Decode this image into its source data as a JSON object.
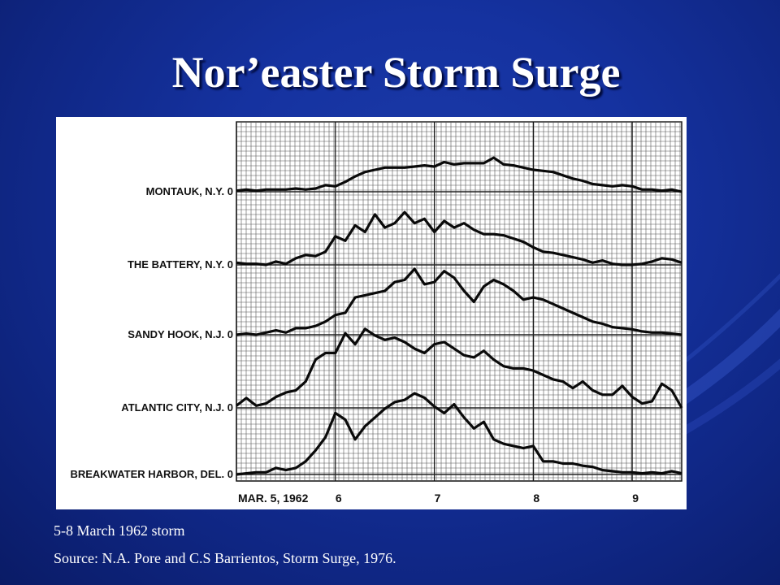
{
  "slide": {
    "title": "Nor’easter Storm Surge",
    "caption": "5-8 March 1962 storm",
    "source": "Source: N.A. Pore and C.S Barrientos, Storm Surge, 1976."
  },
  "chart_data": {
    "type": "line",
    "title": "",
    "x_tick_labels": [
      "MAR. 5, 1962",
      "6",
      "7",
      "8",
      "9"
    ],
    "x_days": [
      5,
      6,
      7,
      8,
      9
    ],
    "x_range": [
      5,
      9.5
    ],
    "y_zero_label": "0",
    "grid": true,
    "stations": [
      {
        "name": "MONTAUK, N.Y.",
        "x": [
          5.0,
          5.1,
          5.2,
          5.3,
          5.4,
          5.5,
          5.6,
          5.7,
          5.8,
          5.9,
          6.0,
          6.1,
          6.2,
          6.3,
          6.4,
          6.5,
          6.6,
          6.7,
          6.8,
          6.9,
          7.0,
          7.1,
          7.2,
          7.3,
          7.4,
          7.5,
          7.6,
          7.7,
          7.8,
          7.9,
          8.0,
          8.1,
          8.2,
          8.3,
          8.4,
          8.5,
          8.6,
          8.7,
          8.8,
          8.9,
          9.0,
          9.1,
          9.2,
          9.3,
          9.4,
          9.5
        ],
        "y": [
          0.05,
          0.1,
          0.05,
          0.1,
          0.1,
          0.1,
          0.15,
          0.1,
          0.15,
          0.3,
          0.25,
          0.45,
          0.7,
          0.9,
          1.0,
          1.1,
          1.1,
          1.1,
          1.15,
          1.2,
          1.15,
          1.35,
          1.25,
          1.3,
          1.3,
          1.3,
          1.55,
          1.25,
          1.2,
          1.1,
          1.0,
          0.95,
          0.9,
          0.75,
          0.6,
          0.5,
          0.35,
          0.3,
          0.25,
          0.3,
          0.25,
          0.1,
          0.1,
          0.05,
          0.1,
          0.0
        ]
      },
      {
        "name": "THE BATTERY, N.Y.",
        "x": [
          5.0,
          5.1,
          5.2,
          5.3,
          5.4,
          5.5,
          5.6,
          5.7,
          5.8,
          5.9,
          6.0,
          6.1,
          6.2,
          6.3,
          6.4,
          6.5,
          6.6,
          6.7,
          6.8,
          6.9,
          7.0,
          7.1,
          7.2,
          7.3,
          7.4,
          7.5,
          7.6,
          7.7,
          7.8,
          7.9,
          8.0,
          8.1,
          8.2,
          8.3,
          8.4,
          8.5,
          8.6,
          8.7,
          8.8,
          8.9,
          9.0,
          9.1,
          9.2,
          9.3,
          9.4,
          9.5
        ],
        "y": [
          0.1,
          0.05,
          0.05,
          0.0,
          0.15,
          0.05,
          0.3,
          0.45,
          0.4,
          0.6,
          1.3,
          1.1,
          1.8,
          1.5,
          2.3,
          1.7,
          1.9,
          2.4,
          1.9,
          2.1,
          1.5,
          2.0,
          1.7,
          1.9,
          1.6,
          1.4,
          1.4,
          1.35,
          1.2,
          1.05,
          0.8,
          0.6,
          0.55,
          0.45,
          0.35,
          0.25,
          0.1,
          0.2,
          0.05,
          0.0,
          0.0,
          0.05,
          0.15,
          0.3,
          0.25,
          0.1
        ]
      },
      {
        "name": "SANDY HOOK, N.J.",
        "x": [
          5.0,
          5.1,
          5.2,
          5.3,
          5.4,
          5.5,
          5.6,
          5.7,
          5.8,
          5.9,
          6.0,
          6.1,
          6.2,
          6.3,
          6.4,
          6.5,
          6.6,
          6.7,
          6.8,
          6.9,
          7.0,
          7.1,
          7.2,
          7.3,
          7.4,
          7.5,
          7.6,
          7.7,
          7.8,
          7.9,
          8.0,
          8.1,
          8.2,
          8.3,
          8.4,
          8.5,
          8.6,
          8.7,
          8.8,
          8.9,
          9.0,
          9.1,
          9.2,
          9.3,
          9.4,
          9.5
        ],
        "y": [
          0.0,
          0.05,
          0.0,
          0.1,
          0.2,
          0.1,
          0.3,
          0.3,
          0.4,
          0.6,
          0.9,
          1.0,
          1.7,
          1.8,
          1.9,
          2.0,
          2.4,
          2.5,
          3.0,
          2.3,
          2.4,
          2.9,
          2.6,
          2.0,
          1.5,
          2.2,
          2.5,
          2.3,
          2.0,
          1.6,
          1.7,
          1.6,
          1.4,
          1.2,
          1.0,
          0.8,
          0.6,
          0.5,
          0.35,
          0.3,
          0.25,
          0.15,
          0.1,
          0.1,
          0.05,
          0.0
        ]
      },
      {
        "name": "ATLANTIC CITY, N.J.",
        "x": [
          5.0,
          5.1,
          5.2,
          5.3,
          5.4,
          5.5,
          5.6,
          5.7,
          5.8,
          5.9,
          6.0,
          6.1,
          6.2,
          6.3,
          6.4,
          6.5,
          6.6,
          6.7,
          6.8,
          6.9,
          7.0,
          7.1,
          7.2,
          7.3,
          7.4,
          7.5,
          7.6,
          7.7,
          7.8,
          7.9,
          8.0,
          8.1,
          8.2,
          8.3,
          8.4,
          8.5,
          8.6,
          8.7,
          8.8,
          8.9,
          9.0,
          9.1,
          9.2,
          9.3,
          9.4,
          9.5
        ],
        "y": [
          0.1,
          0.45,
          0.1,
          0.2,
          0.5,
          0.7,
          0.8,
          1.2,
          2.2,
          2.5,
          2.5,
          3.4,
          2.9,
          3.6,
          3.3,
          3.1,
          3.2,
          3.0,
          2.7,
          2.5,
          2.9,
          3.0,
          2.7,
          2.4,
          2.3,
          2.6,
          2.2,
          1.9,
          1.8,
          1.8,
          1.7,
          1.5,
          1.3,
          1.2,
          0.9,
          1.2,
          0.8,
          0.6,
          0.6,
          1.0,
          0.5,
          0.2,
          0.3,
          1.1,
          0.8,
          0.0
        ]
      },
      {
        "name": "BREAKWATER HARBOR, DEL.",
        "x": [
          5.0,
          5.1,
          5.2,
          5.3,
          5.4,
          5.5,
          5.6,
          5.7,
          5.8,
          5.9,
          6.0,
          6.1,
          6.2,
          6.3,
          6.4,
          6.5,
          6.6,
          6.7,
          6.8,
          6.9,
          7.0,
          7.1,
          7.2,
          7.3,
          7.4,
          7.5,
          7.6,
          7.7,
          7.8,
          7.9,
          8.0,
          8.1,
          8.2,
          8.3,
          8.4,
          8.5,
          8.6,
          8.7,
          8.8,
          8.9,
          9.0,
          9.1,
          9.2,
          9.3,
          9.4,
          9.5
        ],
        "y": [
          0.0,
          0.05,
          0.1,
          0.1,
          0.3,
          0.2,
          0.3,
          0.6,
          1.1,
          1.7,
          2.8,
          2.5,
          1.6,
          2.2,
          2.6,
          3.0,
          3.3,
          3.4,
          3.7,
          3.5,
          3.1,
          2.8,
          3.2,
          2.6,
          2.1,
          2.4,
          1.6,
          1.4,
          1.3,
          1.2,
          1.3,
          0.6,
          0.6,
          0.5,
          0.5,
          0.4,
          0.35,
          0.2,
          0.15,
          0.1,
          0.1,
          0.05,
          0.1,
          0.05,
          0.15,
          0.05
        ]
      }
    ]
  }
}
